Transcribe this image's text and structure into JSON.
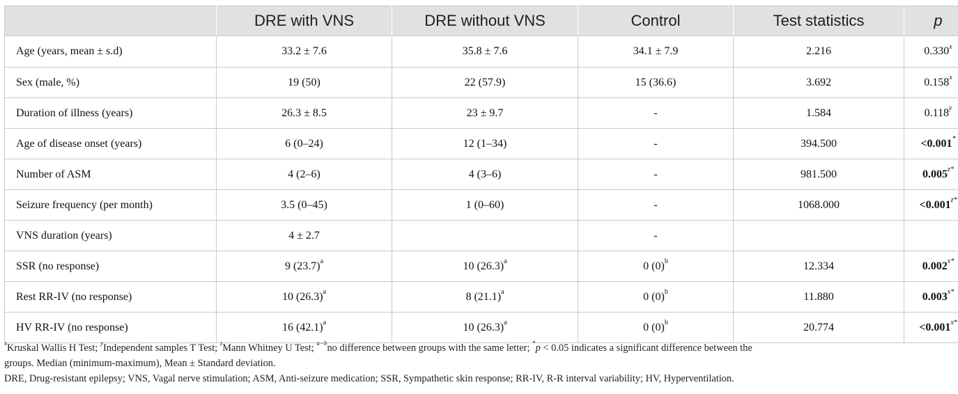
{
  "table": {
    "headers": [
      "",
      "DRE with VNS",
      "DRE without VNS",
      "Control",
      "Test statistics",
      "p"
    ],
    "rows": [
      {
        "label": "Age (years, mean ± s.d)",
        "c1": "33.2 ± 7.6",
        "c2": "35.8 ± 7.6",
        "c3": "34.1 ± 7.9",
        "c4": "2.216",
        "p": "0.330",
        "p_sup": "x",
        "p_bold": false
      },
      {
        "label": "Sex (male, %)",
        "c1": "19 (50)",
        "c2": "22 (57.9)",
        "c3": "15 (36.6)",
        "c4": "3.692",
        "p": "0.158",
        "p_sup": "x",
        "p_bold": false
      },
      {
        "label": "Duration of illness (years)",
        "c1": "26.3 ± 8.5",
        "c2": "23 ± 9.7",
        "c3": "-",
        "c4": "1.584",
        "p": "0.118",
        "p_sup": "y",
        "p_bold": false
      },
      {
        "label": "Age of disease onset (years)",
        "c1": "6 (0–24)",
        "c2": "12 (1–34)",
        "c3": "-",
        "c4": "394.500",
        "p": "<0.001",
        "p_sup": "*",
        "p_bold": true
      },
      {
        "label": "Number of ASM",
        "c1": "4 (2–6)",
        "c2": "4 (3–6)",
        "c3": "-",
        "c4": "981.500",
        "p": "0.005",
        "p_sup": "z*",
        "p_bold": true
      },
      {
        "label": "Seizure frequency (per month)",
        "c1": "3.5 (0–45)",
        "c2": "1 (0–60)",
        "c3": "-",
        "c4": "1068.000",
        "p": "<0.001",
        "p_sup": "z*",
        "p_bold": true
      },
      {
        "label": "VNS duration (years)",
        "c1": "4 ± 2.7",
        "c2": "",
        "c3": "-",
        "c4": "",
        "p": "",
        "p_sup": "",
        "p_bold": false
      },
      {
        "label": "SSR (no response)",
        "c1": "9 (23.7)",
        "c1_sup": "a",
        "c2": "10 (26.3)",
        "c2_sup": "a",
        "c3": "0 (0)",
        "c3_sup": "b",
        "c4": "12.334",
        "p": "0.002",
        "p_sup": "x*",
        "p_bold": true
      },
      {
        "label": "Rest RR-IV (no response)",
        "c1": "10 (26.3)",
        "c1_sup": "a",
        "c2": "8 (21.1)",
        "c2_sup": "a",
        "c3": "0 (0)",
        "c3_sup": "b",
        "c4": "11.880",
        "p": "0.003",
        "p_sup": "x*",
        "p_bold": true
      },
      {
        "label": "HV RR-IV (no response)",
        "c1": "16 (42.1)",
        "c1_sup": "a",
        "c2": "10 (26.3)",
        "c2_sup": "a",
        "c3": "0 (0)",
        "c3_sup": "b",
        "c4": "20.774",
        "p": "<0.001",
        "p_sup": "x*",
        "p_bold": true
      }
    ]
  },
  "footnotes": {
    "line1": {
      "m1": "x",
      "t1": "Kruskal Wallis H Test; ",
      "m2": "y",
      "t2": "Independent samples T Test; ",
      "m3": "z",
      "t3": "Mann Whitney U Test; ",
      "m4": "a−b",
      "t4": "no difference between groups with the same letter; ",
      "m5": "*",
      "t5_p": "p",
      "t5": " < 0.05 indicates a significant difference between the"
    },
    "line2": "groups. Median (minimum-maximum), Mean ± Standard deviation.",
    "line3": "DRE, Drug-resistant epilepsy; VNS, Vagal nerve stimulation; ASM, Anti-seizure medication; SSR, Sympathetic skin response; RR-IV, R-R interval variability; HV, Hyperventilation."
  }
}
